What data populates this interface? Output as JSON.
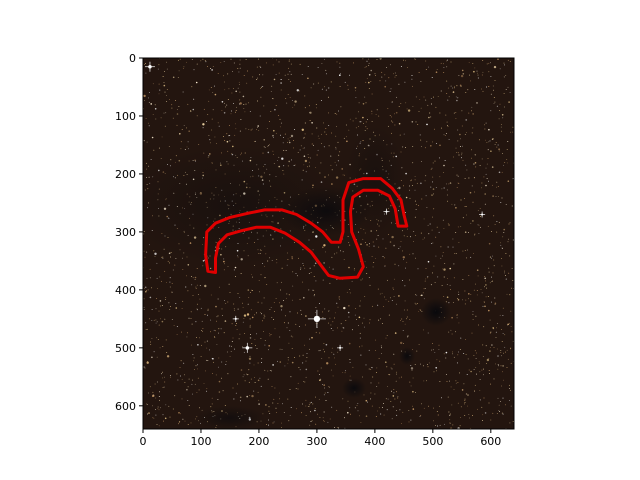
{
  "figure": {
    "background": "#ffffff",
    "image_description_colors": {
      "sky_dark": "#1c1010",
      "star_warm": "#e8c88a",
      "star_white": "#ffffff"
    },
    "contour_color": "#e00000"
  },
  "axes": {
    "x_ticks": [
      "0",
      "100",
      "200",
      "300",
      "400",
      "500",
      "600"
    ],
    "y_ticks": [
      "0",
      "100",
      "200",
      "300",
      "400",
      "500",
      "600"
    ],
    "x_range": [
      0,
      640
    ],
    "y_range": [
      640,
      0
    ]
  },
  "annotation": {
    "type": "closed-contour",
    "units": "image-pixels",
    "path_points": [
      [
        110,
        300
      ],
      [
        125,
        285
      ],
      [
        150,
        275
      ],
      [
        180,
        268
      ],
      [
        210,
        262
      ],
      [
        240,
        262
      ],
      [
        265,
        270
      ],
      [
        290,
        285
      ],
      [
        310,
        300
      ],
      [
        325,
        318
      ],
      [
        340,
        318
      ],
      [
        345,
        300
      ],
      [
        345,
        245
      ],
      [
        355,
        215
      ],
      [
        380,
        208
      ],
      [
        410,
        208
      ],
      [
        430,
        225
      ],
      [
        445,
        245
      ],
      [
        450,
        270
      ],
      [
        455,
        290
      ],
      [
        440,
        290
      ],
      [
        435,
        260
      ],
      [
        425,
        238
      ],
      [
        405,
        228
      ],
      [
        380,
        228
      ],
      [
        362,
        240
      ],
      [
        358,
        265
      ],
      [
        360,
        300
      ],
      [
        372,
        330
      ],
      [
        380,
        360
      ],
      [
        370,
        378
      ],
      [
        340,
        380
      ],
      [
        320,
        375
      ],
      [
        305,
        355
      ],
      [
        290,
        335
      ],
      [
        270,
        318
      ],
      [
        245,
        302
      ],
      [
        220,
        292
      ],
      [
        195,
        292
      ],
      [
        170,
        298
      ],
      [
        145,
        305
      ],
      [
        130,
        320
      ],
      [
        125,
        345
      ],
      [
        125,
        370
      ],
      [
        112,
        368
      ],
      [
        108,
        340
      ]
    ]
  }
}
